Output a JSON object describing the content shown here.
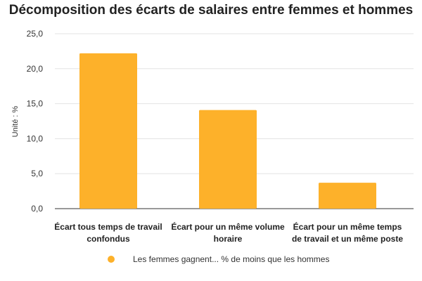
{
  "chart_data": {
    "type": "bar",
    "title": "Décomposition des écarts de salaires entre femmes et hommes",
    "ylabel": "Unité : %",
    "xlabel": "",
    "ylim": [
      0,
      25
    ],
    "yticks": [
      "0,0",
      "5,0",
      "10,0",
      "15,0",
      "20,0",
      "25,0"
    ],
    "grid": true,
    "legend_position": "bottom",
    "categories": [
      [
        "Écart tous temps de travail",
        "confondus"
      ],
      [
        "Écart pour un même volume",
        "horaire"
      ],
      [
        "Écart pour un même temps",
        "de travail et un même poste"
      ]
    ],
    "series": [
      {
        "name": "Les femmes gagnent... % de moins que les hommes",
        "color": "#FDB12A",
        "values": [
          22.2,
          14.1,
          3.7
        ]
      }
    ]
  }
}
